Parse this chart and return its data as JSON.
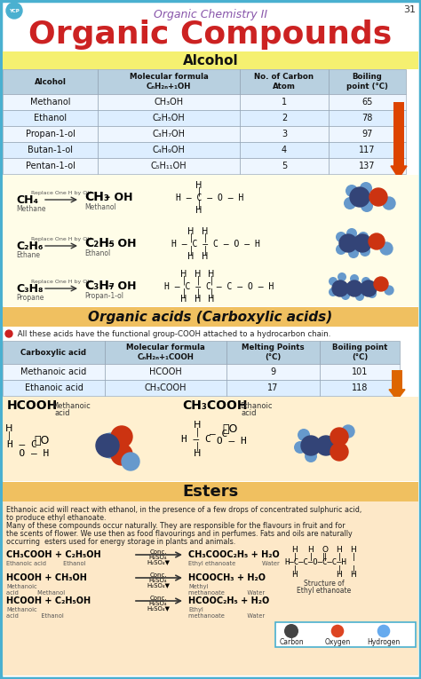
{
  "title_sub": "Organic Chemistry II",
  "title_main": "Organic Compounds",
  "page_num": "31",
  "border_color": "#4ab0d0",
  "red_title": "#cc2222",
  "purple_sub": "#8855aa",
  "alcohol_header": "Alcohol",
  "alcohol_header_bg": "#f5f070",
  "alcohol_table_headers": [
    "Alcohol",
    "Molecular formula\nCₙH₂ₙ+₁OH",
    "No. of Carbon\nAtom",
    "Boiling\npoint (°C)"
  ],
  "alcohol_rows": [
    [
      "Methanol",
      "CH₃OH",
      "1",
      "65"
    ],
    [
      "Ethanol",
      "C₂H₅OH",
      "2",
      "78"
    ],
    [
      "Propan-1-ol",
      "C₃H₇OH",
      "3",
      "97"
    ],
    [
      "Butan-1-ol",
      "C₄H₉OH",
      "4",
      "117"
    ],
    [
      "Pentan-1-ol",
      "C₅H₁₁OH",
      "5",
      "137"
    ]
  ],
  "table_hdr_bg": "#b8d0e0",
  "table_row0": "#ddeeff",
  "table_row1": "#eef6ff",
  "diag_bg": "#fffde8",
  "acid_header": "Organic acids (Carboxylic acids)",
  "acid_header_bg": "#f0c060",
  "acid_note": " All these acids have the functional group-COOH attached to a hydrocarbon chain.",
  "acid_table_headers": [
    "Carboxylic acid",
    "Molecular formula\nCₙH₂ₙ+₁COOH",
    "Melting Points\n(°C)",
    "Boiling point\n(°C)"
  ],
  "acid_rows": [
    [
      "Methanoic acid",
      "HCOOH",
      "9",
      "101"
    ],
    [
      "Ethanoic acid",
      "CH₃COOH",
      "17",
      "118"
    ]
  ],
  "acid_diag_bg": "#fff0d0",
  "ester_header": "Esters",
  "ester_header_bg": "#f0c060",
  "ester_bg": "#fde8c8",
  "ester_text": [
    "Ethanoic acid will react with ethanol, in the presence of a few drops of concentrated sulphuric acid,",
    "to produce ethyl ethanoate.",
    "Many of these compounds occur naturally. They are responsible for the flavours in fruit and for",
    "the scents of flower. We use then as food flavourings and in perfumes. Fats and oils are naturally",
    "occurring  esters used for energy storage in plants and animals."
  ],
  "reactions": [
    {
      "lhs": "CH₃COOH + C₂H₅OH",
      "lhs2": "Ethanoic acid         Ethanol",
      "rhs": "CH₃COOC₂H₅ + H₂O",
      "rhs2": "Ethyl ethanoate              Water"
    },
    {
      "lhs": "HCOOH + CH₃OH",
      "lhs2": "Methanoic\nacid          Methanol",
      "rhs": "HCOOCH₃ + H₂O",
      "rhs2": "Methyl\nmethanoate            Water"
    },
    {
      "lhs": "HCOOH + C₂H₅OH",
      "lhs2": "Methanoic\nacid            Ethanol",
      "rhs": "HCOOC₂H₅ + H₂O",
      "rhs2": "Ethyl\nmethanoate            Water"
    }
  ],
  "legend": [
    {
      "label": "Carbon",
      "color": "#444444"
    },
    {
      "label": "Oxygen",
      "color": "#dd4422"
    },
    {
      "label": "Hydrogen",
      "color": "#66aaee"
    }
  ],
  "C_color": "#334477",
  "O_color": "#cc3311",
  "H_color": "#6699cc"
}
